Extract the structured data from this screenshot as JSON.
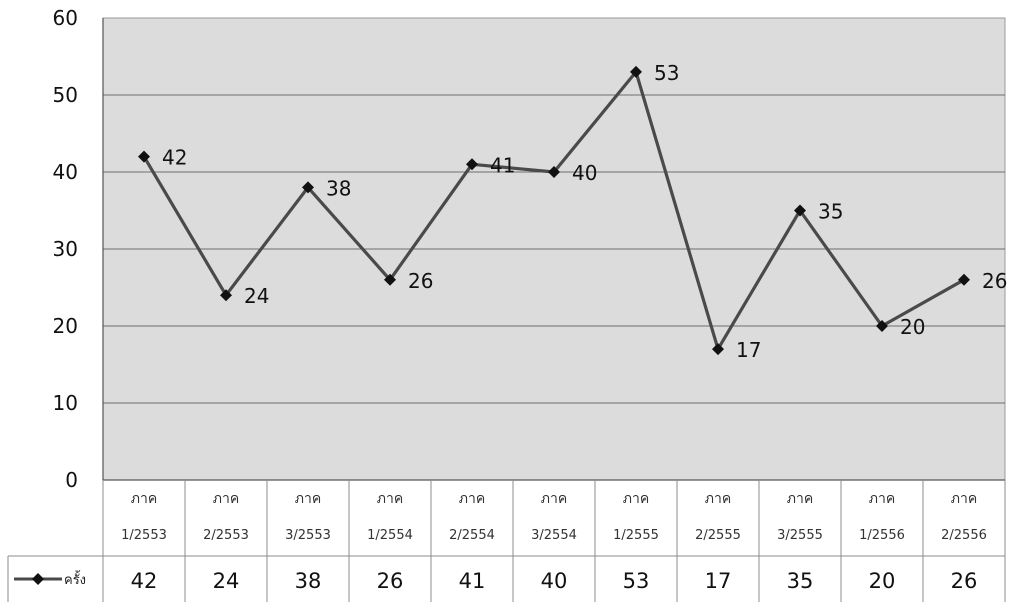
{
  "chart_data": {
    "type": "line",
    "title": "",
    "xlabel": "",
    "ylabel": "",
    "ylim": [
      0,
      60
    ],
    "y_ticks": [
      0,
      10,
      20,
      30,
      40,
      50,
      60
    ],
    "grid": true,
    "legend": "table-bottom-left",
    "plot_background": "#dcdcdc",
    "line_color": "#4a4a4a",
    "marker_color": "#111111",
    "categories": [
      {
        "prefix": "ภาค",
        "term": "1/2553"
      },
      {
        "prefix": "ภาค",
        "term": "2/2553"
      },
      {
        "prefix": "ภาค",
        "term": "3/2553"
      },
      {
        "prefix": "ภาค",
        "term": "1/2554"
      },
      {
        "prefix": "ภาค",
        "term": "2/2554"
      },
      {
        "prefix": "ภาค",
        "term": "3/2554"
      },
      {
        "prefix": "ภาค",
        "term": "1/2555"
      },
      {
        "prefix": "ภาค",
        "term": "2/2555"
      },
      {
        "prefix": "ภาค",
        "term": "3/2555"
      },
      {
        "prefix": "ภาค",
        "term": "1/2556"
      },
      {
        "prefix": "ภาค",
        "term": "2/2556"
      }
    ],
    "series": [
      {
        "name": "ครั้ง",
        "marker": "diamond",
        "values": [
          42,
          24,
          38,
          26,
          41,
          40,
          53,
          17,
          35,
          20,
          26
        ]
      }
    ]
  }
}
